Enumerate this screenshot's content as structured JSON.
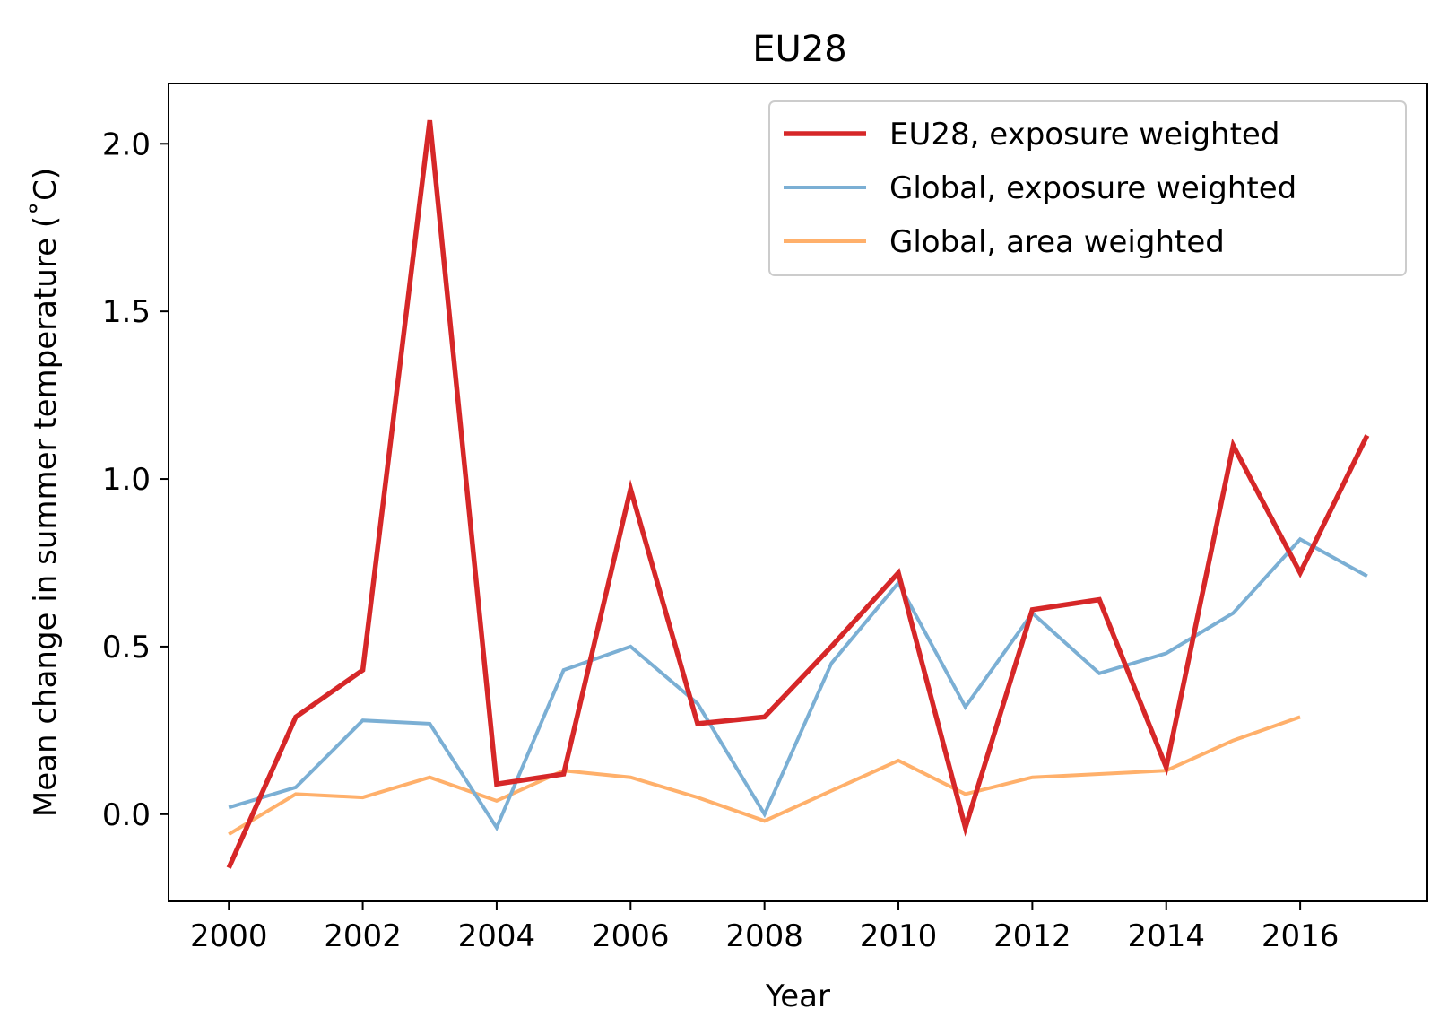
{
  "chart_data": {
    "type": "line",
    "title": "EU28",
    "xlabel": "Year",
    "ylabel": "Mean change in summer temperature (˚C)",
    "xlim": [
      1999.1,
      2017.9
    ],
    "ylim": [
      -0.26,
      2.18
    ],
    "xticks": [
      2000,
      2002,
      2004,
      2006,
      2008,
      2010,
      2012,
      2014,
      2016
    ],
    "xtick_labels": [
      "2000",
      "2002",
      "2004",
      "2006",
      "2008",
      "2010",
      "2012",
      "2014",
      "2016"
    ],
    "yticks": [
      0.0,
      0.5,
      1.0,
      1.5,
      2.0
    ],
    "ytick_labels": [
      "0.0",
      "0.5",
      "1.0",
      "1.5",
      "2.0"
    ],
    "grid": false,
    "legend_position": "top-right",
    "series": [
      {
        "name": "EU28, exposure weighted",
        "color": "#d62728",
        "x": [
          2000,
          2001,
          2002,
          2003,
          2004,
          2005,
          2006,
          2007,
          2008,
          2009,
          2010,
          2011,
          2012,
          2013,
          2014,
          2015,
          2016,
          2017
        ],
        "y": [
          -0.16,
          0.29,
          0.43,
          2.07,
          0.09,
          0.12,
          0.97,
          0.27,
          0.29,
          0.5,
          0.72,
          -0.04,
          0.61,
          0.64,
          0.14,
          1.1,
          0.72,
          1.13
        ]
      },
      {
        "name": "Global, exposure weighted",
        "color": "#7bafd4",
        "x": [
          2000,
          2001,
          2002,
          2003,
          2004,
          2005,
          2006,
          2007,
          2008,
          2009,
          2010,
          2011,
          2012,
          2013,
          2014,
          2015,
          2016,
          2017
        ],
        "y": [
          0.02,
          0.08,
          0.28,
          0.27,
          -0.04,
          0.43,
          0.5,
          0.33,
          0.0,
          0.45,
          0.69,
          0.32,
          0.6,
          0.42,
          0.48,
          0.6,
          0.82,
          0.71
        ]
      },
      {
        "name": "Global, area weighted",
        "color": "#ffb06b",
        "x": [
          2000,
          2001,
          2002,
          2003,
          2004,
          2005,
          2006,
          2007,
          2008,
          2009,
          2010,
          2011,
          2012,
          2013,
          2014,
          2015,
          2016
        ],
        "y": [
          -0.06,
          0.06,
          0.05,
          0.11,
          0.04,
          0.13,
          0.11,
          0.05,
          -0.02,
          0.07,
          0.16,
          0.06,
          0.11,
          0.12,
          0.13,
          0.22,
          0.29
        ]
      }
    ]
  }
}
